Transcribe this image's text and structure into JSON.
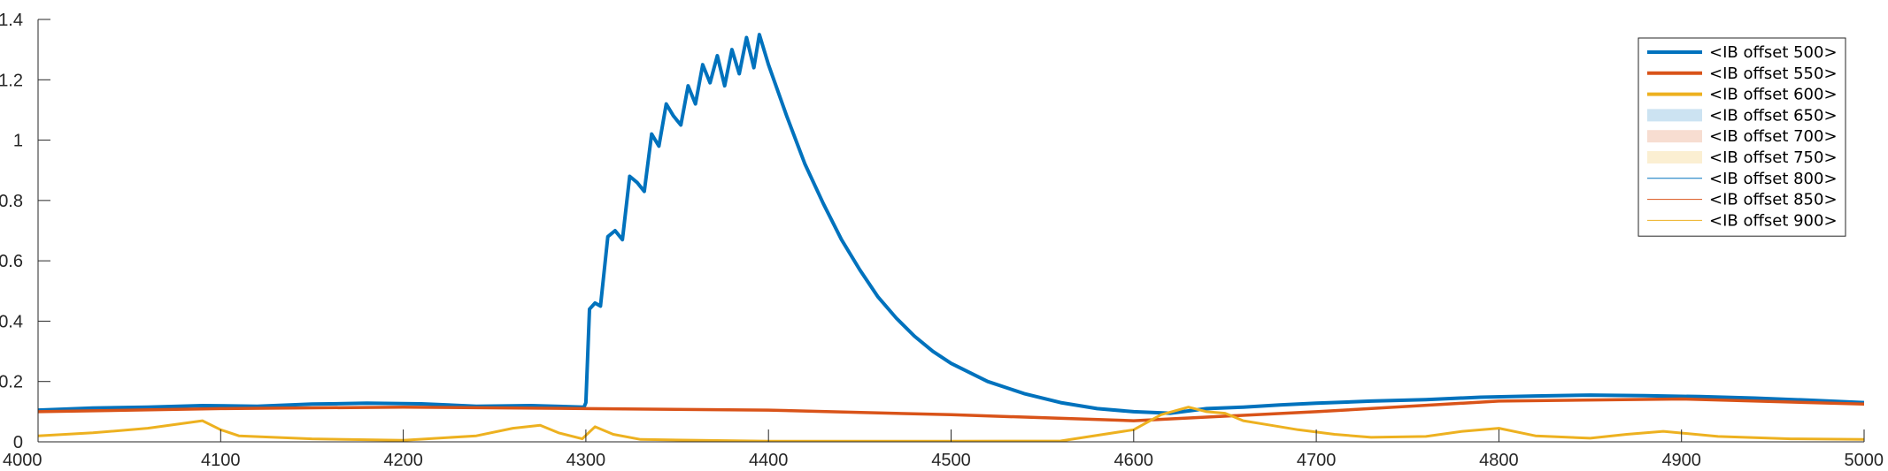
{
  "chart_data": {
    "type": "line",
    "title": "",
    "xlabel": "",
    "ylabel": "",
    "xlim": [
      4000,
      5000
    ],
    "ylim": [
      0,
      1.4
    ],
    "xticks": [
      4000,
      4100,
      4200,
      4300,
      4400,
      4500,
      4600,
      4700,
      4800,
      4900,
      5000
    ],
    "xtick_labels": [
      "4000",
      "4100",
      "4200",
      "4300",
      "4400",
      "4500",
      "4600",
      "4700",
      "4800",
      "4900",
      "5000"
    ],
    "yticks": [
      0,
      0.2,
      0.4,
      0.6,
      0.8,
      1,
      1.2,
      1.4
    ],
    "ytick_labels": [
      "0",
      "0.2",
      "0.4",
      "0.6",
      "0.8",
      "1",
      "1.2",
      "1.4"
    ],
    "grid": false,
    "legend_position": "top-right",
    "legend": [
      {
        "name": "<IB offset 500>",
        "color": "#0072BD",
        "style": "thick-line"
      },
      {
        "name": "<IB offset 550>",
        "color": "#D95319",
        "style": "thick-line"
      },
      {
        "name": "<IB offset 600>",
        "color": "#EDB120",
        "style": "thick-line"
      },
      {
        "name": "<IB offset 650>",
        "color": "#0072BD",
        "style": "patch"
      },
      {
        "name": "<IB offset 700>",
        "color": "#D95319",
        "style": "patch"
      },
      {
        "name": "<IB offset 750>",
        "color": "#EDB120",
        "style": "patch"
      },
      {
        "name": "<IB offset 800>",
        "color": "#0072BD",
        "style": "thin-line"
      },
      {
        "name": "<IB offset 850>",
        "color": "#D95319",
        "style": "thin-line"
      },
      {
        "name": "<IB offset 900>",
        "color": "#EDB120",
        "style": "thin-line"
      }
    ],
    "series": [
      {
        "name": "<IB offset 500>",
        "color": "#0072BD",
        "x": [
          4000,
          4030,
          4060,
          4090,
          4120,
          4150,
          4180,
          4210,
          4240,
          4270,
          4299,
          4300,
          4302,
          4305,
          4308,
          4312,
          4316,
          4320,
          4324,
          4328,
          4332,
          4336,
          4340,
          4344,
          4348,
          4352,
          4356,
          4360,
          4364,
          4368,
          4372,
          4376,
          4380,
          4384,
          4388,
          4392,
          4395,
          4400,
          4410,
          4420,
          4430,
          4440,
          4450,
          4460,
          4470,
          4480,
          4490,
          4500,
          4520,
          4540,
          4560,
          4580,
          4600,
          4620,
          4640,
          4660,
          4680,
          4700,
          4730,
          4760,
          4790,
          4820,
          4850,
          4880,
          4910,
          4940,
          4970,
          5000
        ],
        "y": [
          0.105,
          0.112,
          0.115,
          0.12,
          0.118,
          0.125,
          0.128,
          0.126,
          0.118,
          0.12,
          0.115,
          0.13,
          0.44,
          0.46,
          0.45,
          0.68,
          0.7,
          0.67,
          0.88,
          0.86,
          0.83,
          1.02,
          0.98,
          1.12,
          1.08,
          1.05,
          1.18,
          1.12,
          1.25,
          1.19,
          1.28,
          1.18,
          1.3,
          1.22,
          1.34,
          1.24,
          1.35,
          1.25,
          1.08,
          0.92,
          0.79,
          0.67,
          0.57,
          0.48,
          0.41,
          0.35,
          0.3,
          0.26,
          0.2,
          0.16,
          0.13,
          0.11,
          0.1,
          0.095,
          0.11,
          0.115,
          0.122,
          0.128,
          0.135,
          0.14,
          0.148,
          0.152,
          0.155,
          0.153,
          0.15,
          0.145,
          0.138,
          0.13
        ]
      },
      {
        "name": "<IB offset 550>",
        "color": "#D95319",
        "x": [
          4000,
          4100,
          4200,
          4300,
          4400,
          4500,
          4600,
          4700,
          4800,
          4900,
          5000
        ],
        "y": [
          0.1,
          0.11,
          0.115,
          0.11,
          0.105,
          0.09,
          0.07,
          0.1,
          0.135,
          0.142,
          0.125
        ]
      },
      {
        "name": "<IB offset 600>",
        "color": "#EDB120",
        "x": [
          4000,
          4030,
          4060,
          4090,
          4100,
          4110,
          4150,
          4200,
          4240,
          4260,
          4275,
          4285,
          4298,
          4305,
          4315,
          4330,
          4400,
          4500,
          4560,
          4600,
          4615,
          4630,
          4640,
          4650,
          4660,
          4675,
          4690,
          4710,
          4730,
          4760,
          4780,
          4800,
          4820,
          4850,
          4870,
          4890,
          4920,
          4960,
          5000
        ],
        "y": [
          0.02,
          0.03,
          0.045,
          0.07,
          0.04,
          0.02,
          0.01,
          0.005,
          0.02,
          0.045,
          0.055,
          0.03,
          0.01,
          0.05,
          0.025,
          0.008,
          0.002,
          0.002,
          0.003,
          0.04,
          0.09,
          0.115,
          0.1,
          0.095,
          0.07,
          0.055,
          0.04,
          0.025,
          0.015,
          0.018,
          0.035,
          0.045,
          0.02,
          0.012,
          0.025,
          0.035,
          0.018,
          0.01,
          0.008
        ]
      }
    ]
  }
}
